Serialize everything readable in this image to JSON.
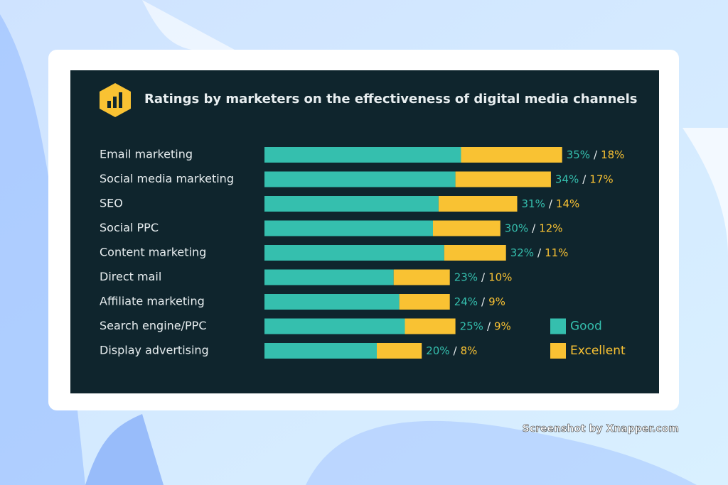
{
  "chart_data": {
    "type": "stacked_bar_horizontal",
    "title": "Ratings by marketers on the effectiveness of digital media channels",
    "categories": [
      "Email marketing",
      "Social media marketing",
      "SEO",
      "Social PPC",
      "Content marketing",
      "Direct mail",
      "Affiliate marketing",
      "Search engine/PPC",
      "Display advertising"
    ],
    "series": [
      {
        "name": "Good",
        "color": "#35bfae",
        "values": [
          35,
          34,
          31,
          30,
          32,
          23,
          24,
          25,
          20
        ],
        "value_labels": [
          "35%",
          "34%",
          "31%",
          "30%",
          "32%",
          "23%",
          "24%",
          "25%",
          "20%"
        ]
      },
      {
        "name": "Excellent",
        "color": "#f9c233",
        "values": [
          18,
          17,
          14,
          12,
          11,
          10,
          9,
          9,
          8
        ],
        "value_labels": [
          "18%",
          "17%",
          "14%",
          "12%",
          "11%",
          "10%",
          "9%",
          "9%",
          "8%"
        ]
      }
    ],
    "label_separator": "/",
    "legend": "bottom-right"
  },
  "watermark": "Screenshot by Xnapper.com"
}
